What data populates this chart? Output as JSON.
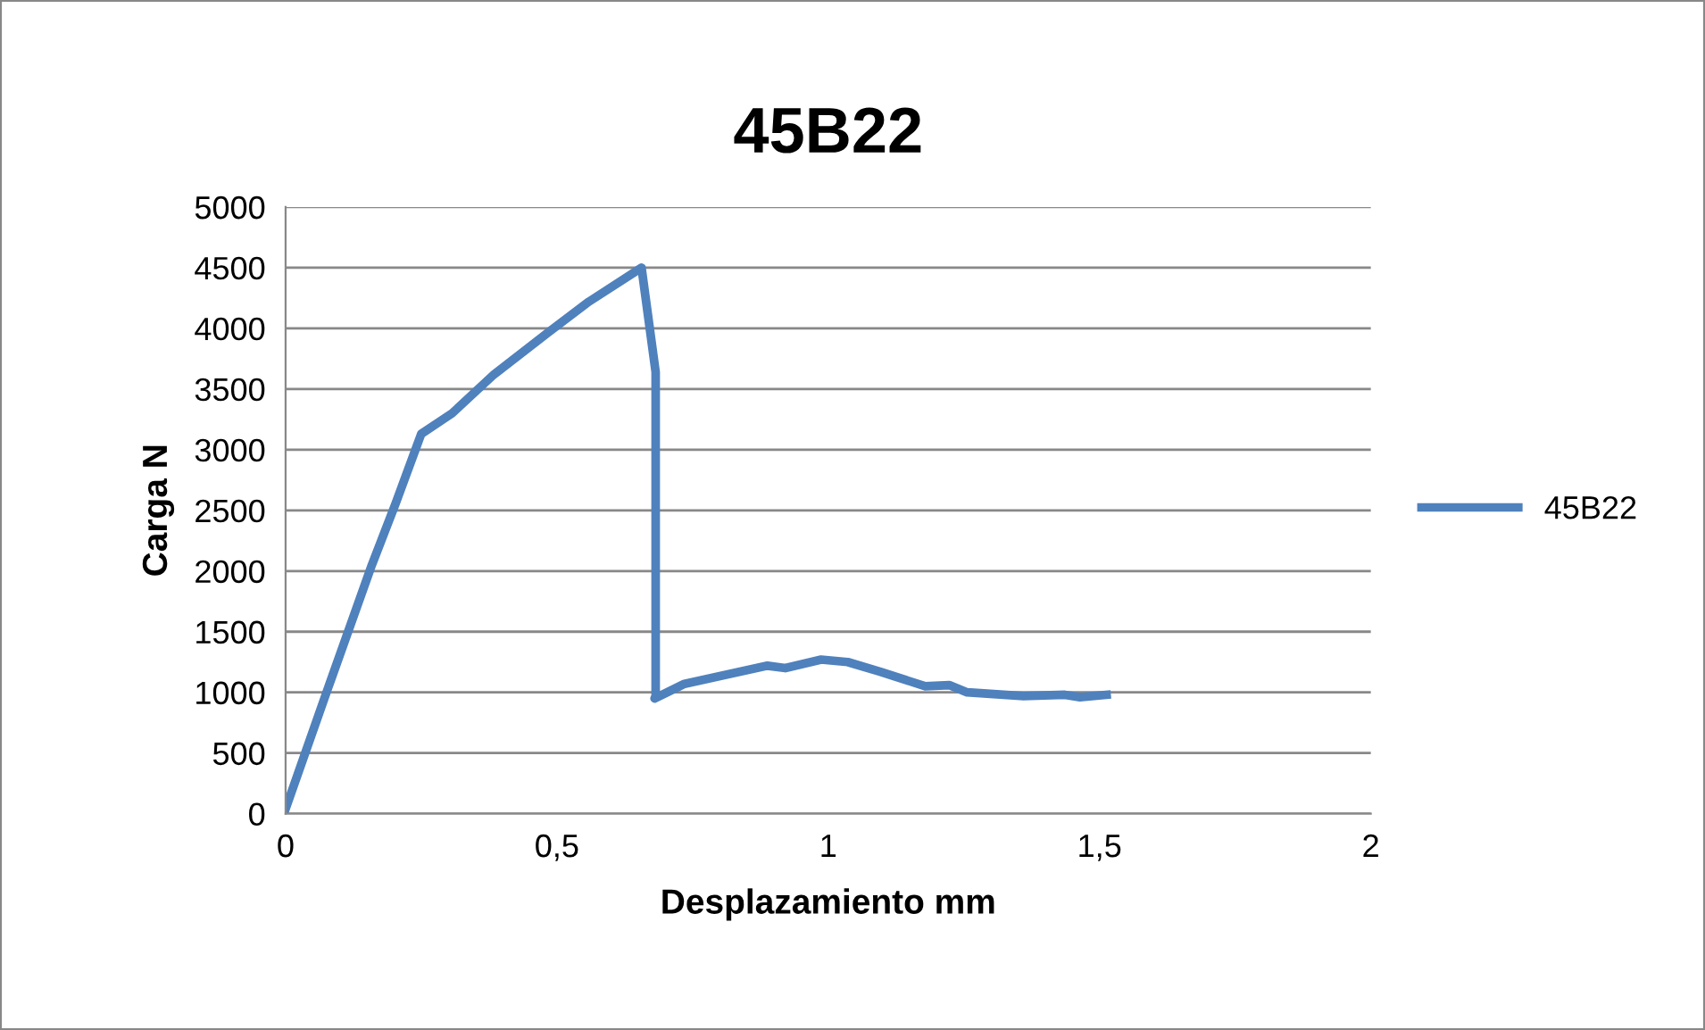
{
  "chart_data": {
    "type": "line",
    "title": "45B22",
    "xlabel": "Desplazamiento mm",
    "ylabel": "Carga N",
    "series": [
      {
        "name": "45B22",
        "color": "#4f81bd",
        "x": [
          0,
          0.077,
          0.159,
          0.203,
          0.25,
          0.307,
          0.384,
          0.482,
          0.559,
          0.656,
          0.682,
          0.682,
          0.68,
          0.735,
          0.888,
          0.921,
          0.987,
          1.036,
          1.096,
          1.179,
          1.223,
          1.256,
          1.36,
          1.436,
          1.464,
          1.513
        ],
        "values": [
          40,
          1020,
          2050,
          2560,
          3130,
          3300,
          3620,
          3960,
          4220,
          4500,
          3640,
          970,
          950,
          1070,
          1220,
          1200,
          1270,
          1250,
          1170,
          1050,
          1060,
          1000,
          970,
          980,
          960,
          980
        ]
      }
    ],
    "xlim": [
      0,
      2
    ],
    "xticks": [
      0,
      {
        "value": 0.5,
        "label": "0,5"
      },
      1,
      {
        "value": 1.5,
        "label": "1,5"
      },
      2
    ],
    "ylim": [
      0,
      5000
    ],
    "yticks": [
      0,
      500,
      1000,
      1500,
      2000,
      2500,
      3000,
      3500,
      4000,
      4500,
      5000
    ],
    "grid": "y",
    "legend": "right",
    "marker": "none",
    "line_style": "solid"
  }
}
